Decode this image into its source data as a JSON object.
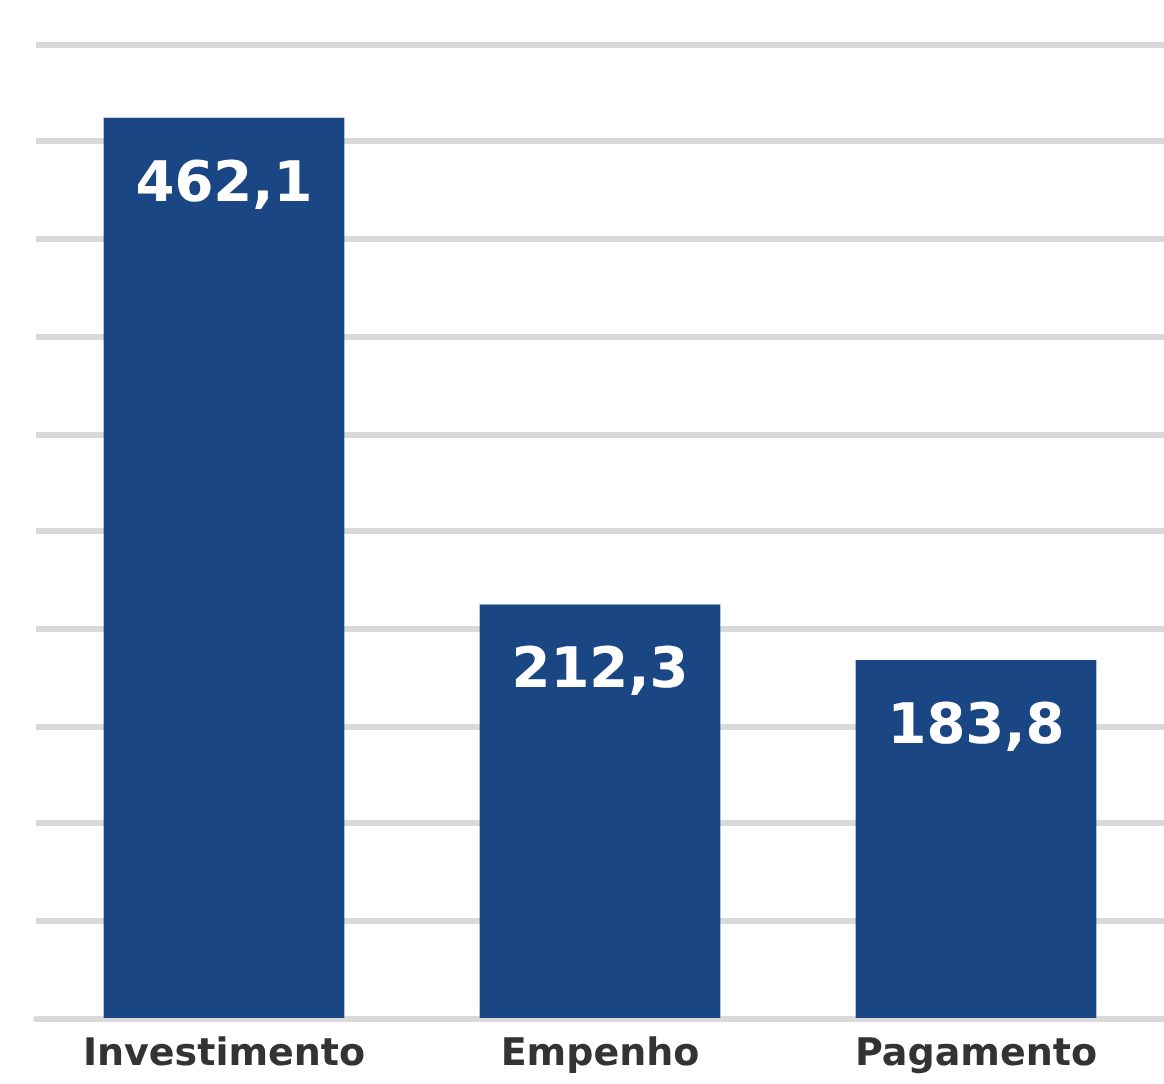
{
  "chart_data": {
    "type": "bar",
    "categories": [
      "Investimento",
      "Empenho",
      "Pagamento"
    ],
    "values": [
      462.1,
      212.3,
      183.8
    ],
    "value_labels": [
      "462,1",
      "212,3",
      "183,8"
    ],
    "color": "#1a4683",
    "grid": "y",
    "tick_labels": "x"
  }
}
